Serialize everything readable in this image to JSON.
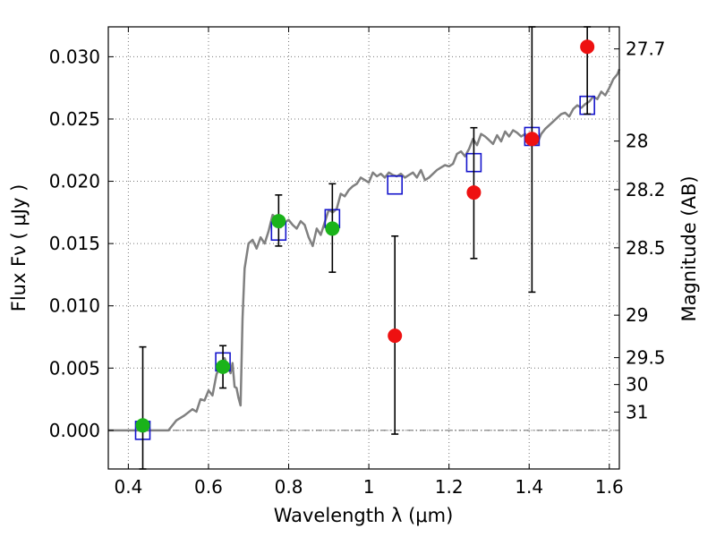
{
  "chart_data": {
    "type": "scatter",
    "xlabel": "Wavelength  λ (μm)",
    "ylabel": "Flux  Fν  ( μJy )",
    "y2label": "Magnitude (AB)",
    "xlim": [
      0.35,
      1.625
    ],
    "ylim": [
      -0.0031,
      0.0324
    ],
    "grid": true,
    "xticks": [
      0.4,
      0.6,
      0.8,
      1.0,
      1.2,
      1.4,
      1.6
    ],
    "xtick_labels": [
      "0.4",
      "0.6",
      "0.8",
      "1",
      "1.2",
      "1.4",
      "1.6"
    ],
    "yticks": [
      0.0,
      0.005,
      0.01,
      0.015,
      0.02,
      0.025,
      0.03
    ],
    "ytick_labels": [
      "0.000",
      "0.005",
      "0.010",
      "0.015",
      "0.020",
      "0.025",
      "0.030"
    ],
    "y2ticks": [
      {
        "label": "27.7",
        "flux": 0.03063
      },
      {
        "label": "28",
        "flux": 0.02323
      },
      {
        "label": "28.2",
        "flux": 0.01933
      },
      {
        "label": "28.5",
        "flux": 0.01466
      },
      {
        "label": "29",
        "flux": 0.00925
      },
      {
        "label": "29.5",
        "flux": 0.00584
      },
      {
        "label": "30",
        "flux": 0.00368
      },
      {
        "label": "31",
        "flux": 0.00147
      }
    ],
    "zero_line": 0.0,
    "colors": {
      "model": "#808080",
      "green_points": "#1ab31a",
      "red_points": "#ee1111",
      "boxes": "#1515cc",
      "errorbars": "#000000",
      "grid": "#777777"
    },
    "model_spectrum": {
      "x": [
        0.35,
        0.44,
        0.5,
        0.52,
        0.54,
        0.56,
        0.57,
        0.58,
        0.59,
        0.6,
        0.61,
        0.62,
        0.63,
        0.64,
        0.65,
        0.655,
        0.66,
        0.665,
        0.67,
        0.675,
        0.68,
        0.685,
        0.69,
        0.7,
        0.71,
        0.72,
        0.73,
        0.74,
        0.75,
        0.76,
        0.77,
        0.78,
        0.79,
        0.8,
        0.81,
        0.82,
        0.83,
        0.84,
        0.85,
        0.86,
        0.87,
        0.88,
        0.89,
        0.9,
        0.91,
        0.92,
        0.93,
        0.94,
        0.95,
        0.96,
        0.97,
        0.98,
        0.99,
        1.0,
        1.01,
        1.02,
        1.03,
        1.04,
        1.05,
        1.06,
        1.07,
        1.08,
        1.09,
        1.1,
        1.11,
        1.12,
        1.13,
        1.14,
        1.15,
        1.16,
        1.17,
        1.18,
        1.19,
        1.2,
        1.21,
        1.22,
        1.23,
        1.24,
        1.25,
        1.26,
        1.27,
        1.28,
        1.29,
        1.3,
        1.31,
        1.32,
        1.33,
        1.34,
        1.35,
        1.36,
        1.37,
        1.38,
        1.39,
        1.4,
        1.41,
        1.42,
        1.43,
        1.44,
        1.45,
        1.46,
        1.47,
        1.48,
        1.49,
        1.5,
        1.51,
        1.52,
        1.53,
        1.54,
        1.55,
        1.56,
        1.57,
        1.58,
        1.59,
        1.6,
        1.61,
        1.62,
        1.625
      ],
      "y": [
        0.0,
        0.0,
        0.0,
        0.0008,
        0.0012,
        0.0017,
        0.0015,
        0.0025,
        0.0024,
        0.0032,
        0.0028,
        0.0045,
        0.0052,
        0.0058,
        0.005,
        0.0046,
        0.0054,
        0.0035,
        0.0034,
        0.0026,
        0.002,
        0.009,
        0.013,
        0.015,
        0.0153,
        0.0146,
        0.0155,
        0.015,
        0.016,
        0.0173,
        0.017,
        0.0163,
        0.0167,
        0.0169,
        0.0165,
        0.0162,
        0.0168,
        0.0165,
        0.0155,
        0.0148,
        0.0162,
        0.0157,
        0.0167,
        0.0177,
        0.0175,
        0.0178,
        0.019,
        0.0188,
        0.0193,
        0.0196,
        0.0198,
        0.0203,
        0.0201,
        0.0199,
        0.0207,
        0.0204,
        0.0206,
        0.0203,
        0.0207,
        0.0205,
        0.0204,
        0.0206,
        0.0203,
        0.0205,
        0.0207,
        0.0203,
        0.0209,
        0.0201,
        0.0203,
        0.0206,
        0.0209,
        0.0211,
        0.0213,
        0.0212,
        0.0214,
        0.0222,
        0.0224,
        0.022,
        0.0226,
        0.0234,
        0.0229,
        0.0238,
        0.0236,
        0.0233,
        0.023,
        0.0237,
        0.0232,
        0.024,
        0.0236,
        0.0241,
        0.0239,
        0.0236,
        0.0238,
        0.0231,
        0.0235,
        0.023,
        0.0238,
        0.0242,
        0.0245,
        0.0248,
        0.0251,
        0.0254,
        0.0255,
        0.0252,
        0.0258,
        0.0261,
        0.0259,
        0.0262,
        0.0264,
        0.0268,
        0.0266,
        0.0272,
        0.0269,
        0.0275,
        0.0282,
        0.0286,
        0.029
      ]
    },
    "boxes": {
      "x": [
        0.436,
        0.636,
        0.775,
        0.909,
        1.065,
        1.262,
        1.407,
        1.545
      ],
      "y": [
        0.0,
        0.0055,
        0.016,
        0.017,
        0.0197,
        0.0215,
        0.0236,
        0.0261
      ]
    },
    "green_points": {
      "x": [
        0.436,
        0.636,
        0.775,
        0.909
      ],
      "y": [
        0.0004,
        0.0051,
        0.0168,
        0.0162
      ],
      "err_low": [
        -0.0031,
        0.0034,
        0.0148,
        0.0127
      ],
      "err_high": [
        0.0067,
        0.0068,
        0.0189,
        0.0198
      ]
    },
    "red_points": {
      "x": [
        1.065,
        1.262,
        1.407,
        1.545
      ],
      "y": [
        0.0076,
        0.0191,
        0.0234,
        0.0308
      ],
      "err_low": [
        -0.0003,
        0.0138,
        0.0111,
        0.0254
      ],
      "err_high": [
        0.0156,
        0.0243,
        0.0324,
        0.0324
      ]
    }
  }
}
